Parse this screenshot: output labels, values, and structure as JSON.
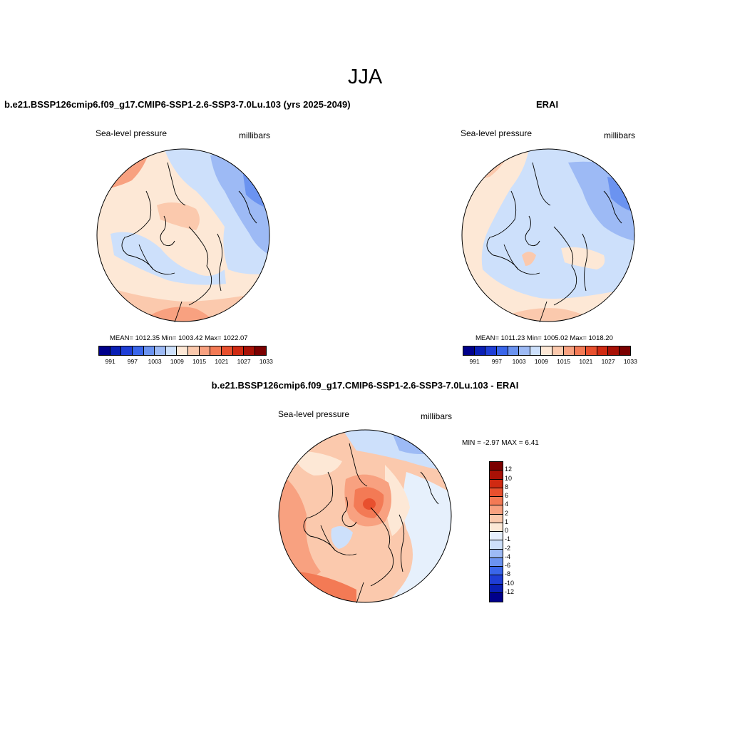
{
  "season": "JJA",
  "panels": [
    {
      "title": "b.e21.BSSP126cmip6.f09_g17.CMIP6-SSP1-2.6-SSP3-7.0Lu.103 (yrs 2025-2049)",
      "left_label": "Sea-level pressure",
      "right_label": "millibars",
      "stats": "MEAN= 1012.35  Min= 1003.42  Max= 1022.07"
    },
    {
      "title": "ERAI",
      "left_label": "Sea-level pressure",
      "right_label": "millibars",
      "stats": "MEAN= 1011.23  Min= 1005.02  Max= 1018.20"
    },
    {
      "title": "b.e21.BSSP126cmip6.f09_g17.CMIP6-SSP1-2.6-SSP3-7.0Lu.103 - ERAI",
      "left_label": "Sea-level pressure",
      "right_label": "millibars",
      "stats": "MIN =  -2.97 MAX =   6.41"
    }
  ],
  "colorbar_abs": {
    "ticks": [
      "991",
      "997",
      "1003",
      "1009",
      "1015",
      "1021",
      "1027",
      "1033"
    ],
    "colors": [
      "#00008b",
      "#0a1fb5",
      "#1f3ed6",
      "#3a66ea",
      "#6b93f0",
      "#9dbaf5",
      "#cde0fb",
      "#fde8d6",
      "#fbc9ad",
      "#f8a180",
      "#f37a55",
      "#e8502e",
      "#d02a12",
      "#a81106",
      "#7b0000"
    ]
  },
  "colorbar_diff": {
    "ticks": [
      "12",
      "10",
      "8",
      "6",
      "4",
      "2",
      "1",
      "0",
      "-1",
      "-2",
      "-4",
      "-6",
      "-8",
      "-10",
      "-12"
    ],
    "colors": [
      "#7b0000",
      "#a81106",
      "#d02a12",
      "#e8502e",
      "#f37a55",
      "#f8a180",
      "#fbc9ad",
      "#fde8d6",
      "#e6f0fc",
      "#cde0fb",
      "#9dbaf5",
      "#6b93f0",
      "#3a66ea",
      "#1f3ed6",
      "#0a1fb5",
      "#00008b"
    ]
  }
}
